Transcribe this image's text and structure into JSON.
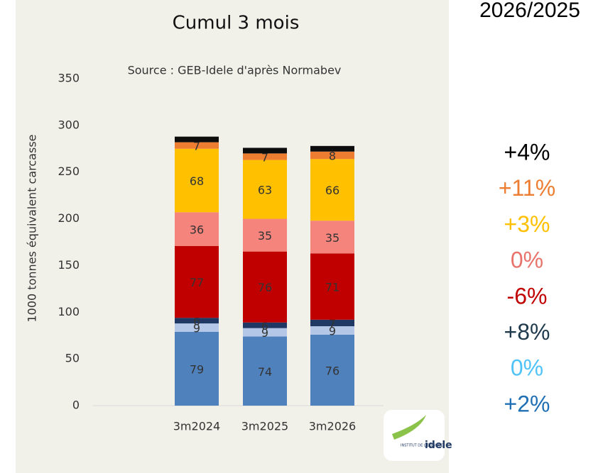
{
  "chart_data": {
    "type": "stacked_bar",
    "title": "Cumul 3 mois",
    "subtitle": "Source : GEB-Idele d'après Normabev",
    "heading": "2026/2025",
    "y_label": "1000 tonnes équivalent carcasse",
    "categories": [
      "3m2024",
      "3m2025",
      "3m2026"
    ],
    "series": [
      {
        "color": "#4f81bd",
        "values": [
          79,
          74,
          76
        ]
      },
      {
        "color": "#b4c7e7",
        "values": [
          9,
          9,
          9
        ]
      },
      {
        "color": "#1f3864",
        "values": [
          6,
          6,
          7
        ]
      },
      {
        "color": "#c00000",
        "values": [
          77,
          76,
          71
        ]
      },
      {
        "color": "#f4847c",
        "values": [
          36,
          35,
          35
        ]
      },
      {
        "color": "#ffc000",
        "values": [
          68,
          63,
          66
        ]
      },
      {
        "color": "#ed7d31",
        "values": [
          7,
          7,
          8
        ]
      },
      {
        "color": "#0d0d0d",
        "values": [
          6,
          6,
          6
        ],
        "labeled": false
      }
    ],
    "ylim": [
      0,
      350
    ],
    "yticks": [
      0,
      50,
      100,
      150,
      200,
      250,
      300,
      350
    ],
    "grid": false,
    "annotations": [
      {
        "text": "+4%",
        "color": "#000000"
      },
      {
        "text": "+11%",
        "color": "#ed7d31"
      },
      {
        "text": "+3%",
        "color": "#ffc000"
      },
      {
        "text": "0%",
        "color": "#e8736b"
      },
      {
        "text": "-6%",
        "color": "#c00000"
      },
      {
        "text": "+8%",
        "color": "#1f3a4d"
      },
      {
        "text": "0%",
        "color": "#4fc3f7"
      },
      {
        "text": "+2%",
        "color": "#1f6fb5"
      }
    ],
    "logo": {
      "small": "INSTITUT DE L'ELEVAGE",
      "brand": "idele"
    }
  }
}
